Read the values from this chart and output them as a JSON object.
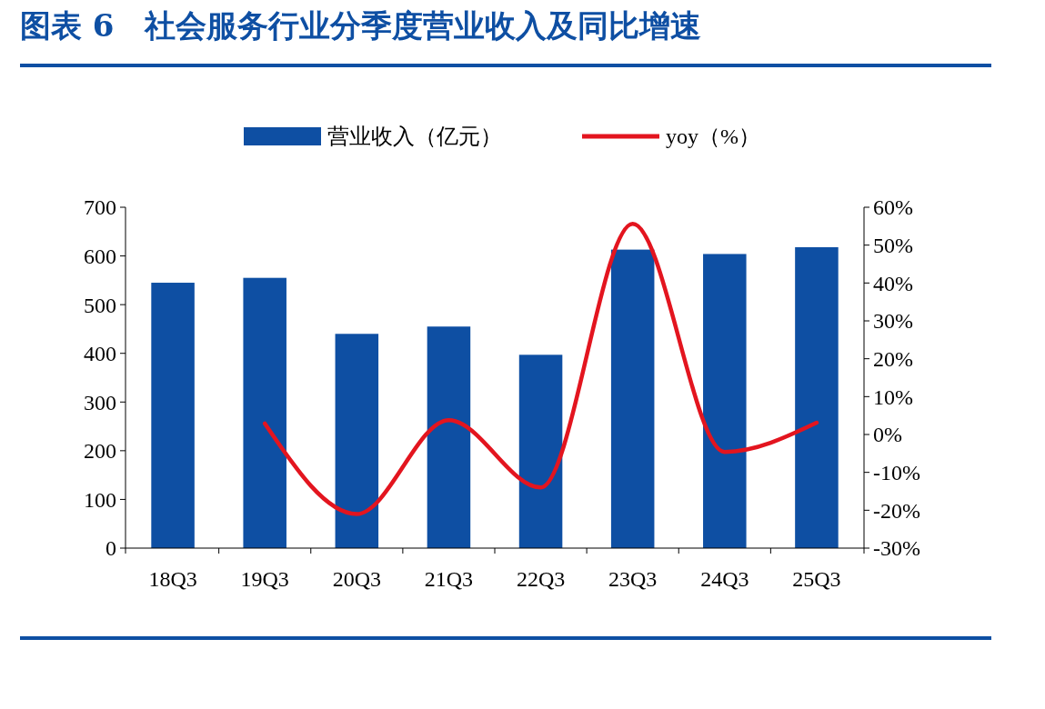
{
  "chart_data": {
    "type": "bar",
    "title": "图表 6　社会服务行业分季度营业收入及同比增速",
    "categories": [
      "18Q3",
      "19Q3",
      "20Q3",
      "21Q3",
      "22Q3",
      "23Q3",
      "24Q3",
      "25Q3"
    ],
    "series": [
      {
        "name": "营业收入（亿元）",
        "color": "#0e4fa3",
        "values": [
          545,
          555,
          440,
          455,
          397,
          613,
          604,
          618
        ]
      },
      {
        "name": "yoy（%）",
        "type": "line",
        "axis": "y2",
        "color": "#e3151f",
        "values": [
          null,
          2.9,
          -21,
          3.8,
          -14,
          55.6,
          -4.6,
          3.1
        ]
      }
    ],
    "ylim": [
      0,
      700
    ],
    "yticks": [
      0,
      100,
      200,
      300,
      400,
      500,
      600,
      700
    ],
    "y2lim": [
      -30,
      60
    ],
    "y2ticks": [
      {
        "value": -30,
        "label": "-30%"
      },
      {
        "value": -20,
        "label": "-20%"
      },
      {
        "value": -10,
        "label": "-10%"
      },
      {
        "value": 0,
        "label": "0%"
      },
      {
        "value": 10,
        "label": "10%"
      },
      {
        "value": 20,
        "label": "20%"
      },
      {
        "value": 30,
        "label": "30%"
      },
      {
        "value": 40,
        "label": "40%"
      },
      {
        "value": 50,
        "label": "50%"
      },
      {
        "value": 60,
        "label": "60%"
      }
    ],
    "legend": "top",
    "grid": false
  }
}
